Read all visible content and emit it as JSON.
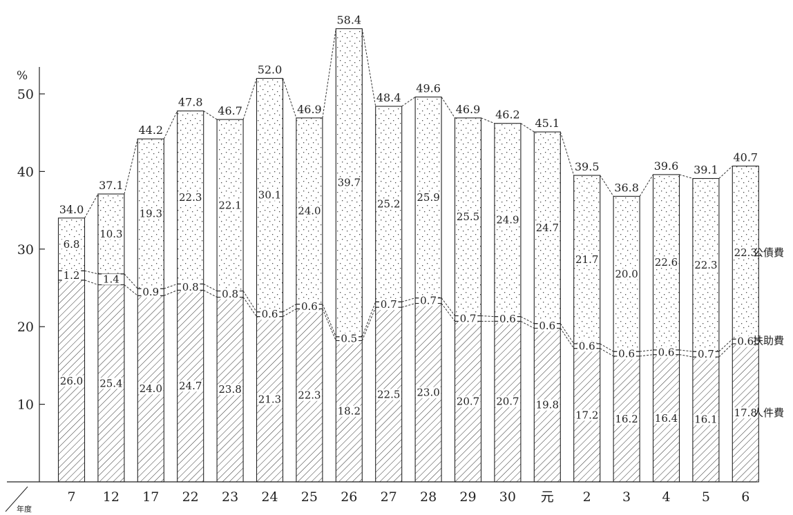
{
  "chart_data": {
    "type": "bar",
    "stacked": true,
    "title": "",
    "xlabel": "年度",
    "ylabel": "%",
    "ylim": [
      0,
      60
    ],
    "yticks": [
      "10",
      "20",
      "30",
      "40",
      "50"
    ],
    "categories": [
      "7",
      "12",
      "17",
      "22",
      "23",
      "24",
      "25",
      "26",
      "27",
      "28",
      "29",
      "30",
      "元",
      "2",
      "3",
      "4",
      "5",
      "6"
    ],
    "series": [
      {
        "name": "人件費",
        "pattern": "diagonal-hatch",
        "values": [
          26.0,
          25.4,
          24.0,
          24.7,
          23.8,
          21.3,
          22.3,
          18.2,
          22.5,
          23.0,
          20.7,
          20.7,
          19.8,
          17.2,
          16.2,
          16.4,
          16.1,
          17.8
        ],
        "labels": [
          "26.0",
          "25.4",
          "24.0",
          "24.7",
          "23.8",
          "21.3",
          "22.3",
          "18.2",
          "22.5",
          "23.0",
          "20.7",
          "20.7",
          "19.8",
          "17.2",
          "16.2",
          "16.4",
          "16.1",
          "17.8"
        ]
      },
      {
        "name": "扶助費",
        "pattern": "blank",
        "values": [
          1.2,
          1.4,
          0.9,
          0.8,
          0.8,
          0.6,
          0.6,
          0.5,
          0.7,
          0.7,
          0.7,
          0.6,
          0.6,
          0.6,
          0.6,
          0.6,
          0.7,
          0.6
        ],
        "labels": [
          "1.2",
          "1.4",
          "0.9",
          "0.8",
          "0.8",
          "0.6",
          "0.6",
          "0.5",
          "0.7",
          "0.7",
          "0.7",
          "0.6",
          "0.6",
          "0.6",
          "0.6",
          "0.6",
          "0.7",
          "0.6"
        ]
      },
      {
        "name": "公債費",
        "pattern": "dots",
        "values": [
          6.8,
          10.3,
          19.3,
          22.3,
          22.1,
          30.1,
          24.0,
          39.7,
          25.2,
          25.9,
          25.5,
          24.9,
          24.7,
          21.7,
          20.0,
          22.6,
          22.3,
          22.3
        ],
        "labels": [
          "6.8",
          "10.3",
          "19.3",
          "22.3",
          "22.1",
          "30.1",
          "24.0",
          "39.7",
          "25.2",
          "25.9",
          "25.5",
          "24.9",
          "24.7",
          "21.7",
          "20.0",
          "22.6",
          "22.3",
          "22.3"
        ]
      }
    ],
    "totals": [
      34.0,
      37.1,
      44.2,
      47.8,
      46.7,
      52.0,
      46.9,
      58.4,
      48.4,
      49.6,
      46.9,
      46.2,
      45.1,
      39.5,
      36.8,
      39.6,
      39.1,
      40.7
    ],
    "total_labels": [
      "34.0",
      "37.1",
      "44.2",
      "47.8",
      "46.7",
      "52.0",
      "46.9",
      "58.4",
      "48.4",
      "49.6",
      "46.9",
      "46.2",
      "45.1",
      "39.5",
      "36.8",
      "39.6",
      "39.1",
      "40.7"
    ],
    "connector_lines": "dashed",
    "grid": false,
    "legend_position": "right, labels beside the last bar"
  }
}
